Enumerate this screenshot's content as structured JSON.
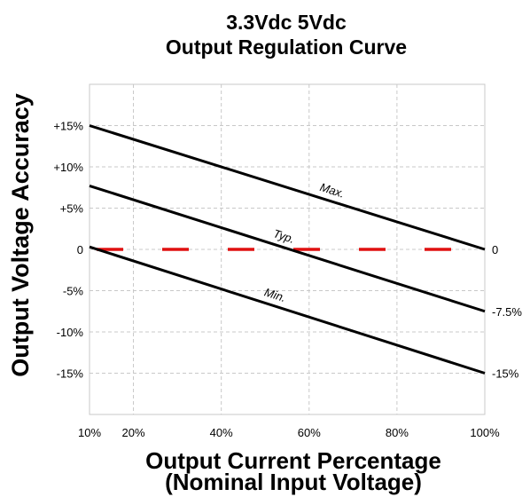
{
  "chart_data": {
    "type": "line",
    "title_lines": [
      "3.3Vdc 5Vdc",
      "Output Regulation Curve"
    ],
    "xlabel_lines": [
      "Output Current Percentage",
      "(Nominal Input Voltage)"
    ],
    "ylabel": "Output Voltage Accuracy",
    "xlim": [
      10,
      100
    ],
    "ylim": [
      -20,
      20
    ],
    "x_ticks": [
      {
        "value": 10,
        "label": "10%"
      },
      {
        "value": 20,
        "label": "20%"
      },
      {
        "value": 40,
        "label": "40%"
      },
      {
        "value": 60,
        "label": "60%"
      },
      {
        "value": 80,
        "label": "80%"
      },
      {
        "value": 100,
        "label": "100%"
      }
    ],
    "y_ticks": [
      {
        "value": 15,
        "label": "+15%"
      },
      {
        "value": 10,
        "label": "+10%"
      },
      {
        "value": 5,
        "label": "+5%"
      },
      {
        "value": 0,
        "label": "0"
      },
      {
        "value": -5,
        "label": "-5%"
      },
      {
        "value": -10,
        "label": "-10%"
      },
      {
        "value": -15,
        "label": "-15%"
      }
    ],
    "grid": true,
    "series": [
      {
        "name": "Max.",
        "x": [
          10,
          100
        ],
        "y": [
          15,
          0
        ],
        "color": "#000000",
        "end_label": "0",
        "label_at": 65
      },
      {
        "name": "Typ.",
        "x": [
          10,
          100
        ],
        "y": [
          7.7,
          -7.5
        ],
        "color": "#000000",
        "end_label": "-7.5%",
        "label_at": 54
      },
      {
        "name": "Min.",
        "x": [
          10,
          100
        ],
        "y": [
          0.3,
          -15
        ],
        "color": "#000000",
        "end_label": "-15%",
        "label_at": 52
      }
    ],
    "reference_line": {
      "y": 0,
      "x": [
        10,
        100
      ],
      "color": "#e01010",
      "style": "dashed"
    }
  }
}
